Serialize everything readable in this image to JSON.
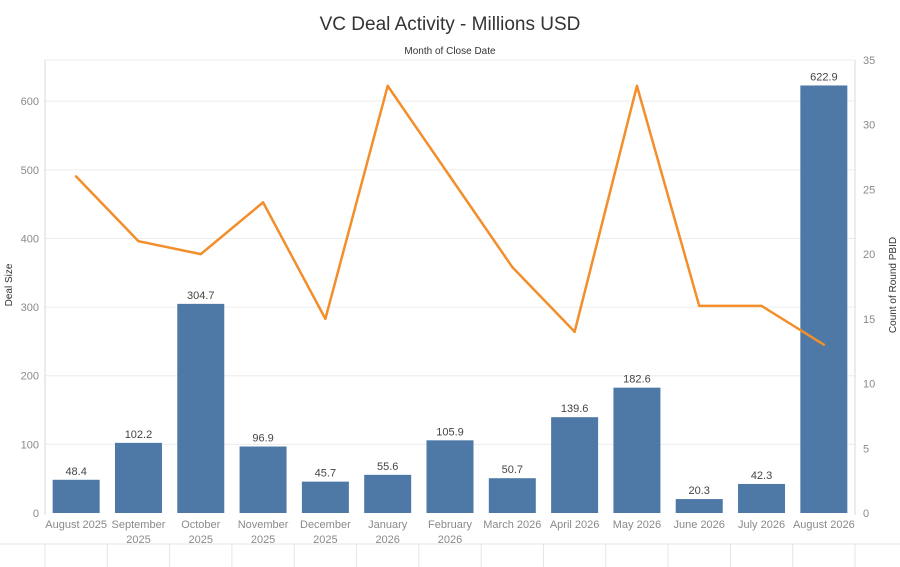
{
  "chart_data": {
    "type": "bar",
    "title": "VC Deal Activity - Millions USD",
    "subtitle": "Month of Close Date",
    "ylabel": "Deal Size",
    "y2label": "Count of Round PBID",
    "ylim": [
      0,
      660
    ],
    "y2lim": [
      0,
      35
    ],
    "yticks": [
      0,
      100,
      200,
      300,
      400,
      500,
      600
    ],
    "y2ticks": [
      0,
      5,
      10,
      15,
      20,
      25,
      30,
      35
    ],
    "categories": [
      [
        "August 2025"
      ],
      [
        "September",
        "2025"
      ],
      [
        "October",
        "2025"
      ],
      [
        "November",
        "2025"
      ],
      [
        "December",
        "2025"
      ],
      [
        "January",
        "2026"
      ],
      [
        "February",
        "2026"
      ],
      [
        "March 2026"
      ],
      [
        "April 2026"
      ],
      [
        "May 2026"
      ],
      [
        "June 2026"
      ],
      [
        "July 2026"
      ],
      [
        "August 2026"
      ]
    ],
    "series": [
      {
        "name": "Deal Size",
        "kind": "bar",
        "axis": "left",
        "color": "#4e79a7",
        "values": [
          48.4,
          102.2,
          304.7,
          96.9,
          45.7,
          55.6,
          105.9,
          50.7,
          139.6,
          182.6,
          20.3,
          42.3,
          622.9
        ],
        "labels": [
          "48.4",
          "102.2",
          "304.7",
          "96.9",
          "45.7",
          "55.6",
          "105.9",
          "50.7",
          "139.6",
          "182.6",
          "20.3",
          "42.3",
          "622.9"
        ]
      },
      {
        "name": "Count of Round PBID",
        "kind": "line",
        "axis": "right",
        "color": "#f28e2b",
        "values": [
          26,
          21,
          20,
          24,
          15,
          33,
          26,
          19,
          14,
          33,
          16,
          16,
          13
        ]
      }
    ],
    "grid": true,
    "legend": "none"
  }
}
